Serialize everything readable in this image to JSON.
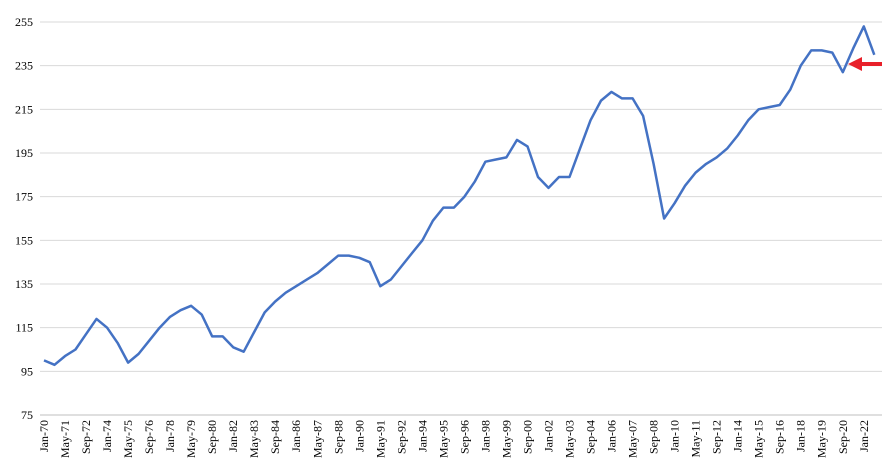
{
  "chart_data": {
    "type": "line",
    "categories": [
      "Jan-70",
      null,
      "May-71",
      null,
      "Sep-72",
      null,
      "Jan-74",
      null,
      "May-75",
      null,
      "Sep-76",
      null,
      "Jan-78",
      null,
      "May-79",
      null,
      "Sep-80",
      null,
      "Jan-82",
      null,
      "May-83",
      null,
      "Sep-84",
      null,
      "Jan-86",
      null,
      "May-87",
      null,
      "Sep-88",
      null,
      "Jan-90",
      null,
      "May-91",
      null,
      "Sep-92",
      null,
      "Jan-94",
      null,
      "May-95",
      null,
      "Sep-96",
      null,
      "Jan-98",
      null,
      "May-99",
      null,
      "Sep-00",
      null,
      "Jan-02",
      null,
      "May-03",
      null,
      "Sep-04",
      null,
      "Jan-06",
      null,
      "May-07",
      null,
      "Sep-08",
      null,
      "Jan-10",
      null,
      "May-11",
      null,
      "Sep-12",
      null,
      "Jan-14",
      null,
      "May-15",
      null,
      "Sep-16",
      null,
      "Jan-18",
      null,
      "May-19",
      null,
      "Sep-20",
      null,
      "Jan-22",
      null
    ],
    "series": [
      {
        "color": "#4472c4",
        "values": [
          100,
          98,
          102,
          105,
          112,
          119,
          115,
          108,
          99,
          103,
          109,
          115,
          120,
          123,
          125,
          121,
          111,
          111,
          106,
          104,
          113,
          122,
          127,
          131,
          134,
          137,
          140,
          144,
          148,
          148,
          147,
          145,
          134,
          137,
          143,
          149,
          155,
          164,
          170,
          170,
          175,
          182,
          191,
          192,
          193,
          201,
          198,
          184,
          179,
          184,
          184,
          197,
          210,
          219,
          223,
          220,
          220,
          212,
          190,
          165,
          172,
          180,
          186,
          190,
          193,
          197,
          203,
          210,
          215,
          216,
          217,
          224,
          235,
          242,
          242,
          241,
          232,
          243,
          253,
          240
        ]
      }
    ],
    "ylim": [
      75,
      255
    ],
    "yticks": [
      75,
      95,
      115,
      135,
      155,
      175,
      195,
      215,
      235,
      255
    ],
    "grid": true
  }
}
